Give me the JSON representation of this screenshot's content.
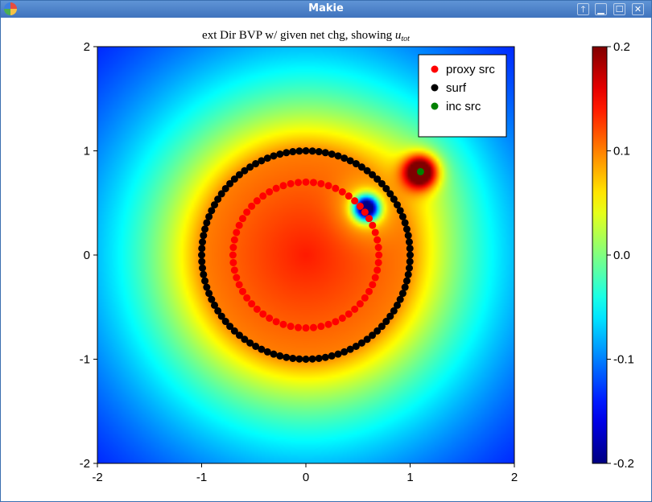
{
  "window": {
    "title": "Makie",
    "buttons": [
      {
        "name": "keep-above-button",
        "glyph": "🡑"
      },
      {
        "name": "minimize-button",
        "glyph": "▁"
      },
      {
        "name": "maximize-button",
        "glyph": "☐"
      },
      {
        "name": "close-button",
        "glyph": "✕"
      }
    ]
  },
  "chart_data": {
    "type": "heatmap",
    "title": "ext Dir BVP w/ given net chg, showing ",
    "title_math_main": "u",
    "title_math_sub": "tot",
    "xlim": [
      -2,
      2
    ],
    "ylim": [
      -2,
      2
    ],
    "xticks": [
      "-2",
      "-1",
      "0",
      "1",
      "2"
    ],
    "yticks": [
      "-2",
      "-1",
      "0",
      "1",
      "2"
    ],
    "xtick_values": [
      -2,
      -1,
      0,
      1,
      2
    ],
    "ytick_values": [
      -2,
      -1,
      0,
      1,
      2
    ],
    "colorbar": {
      "range": [
        -0.2,
        0.2
      ],
      "ticks": [
        "-0.2",
        "-0.1",
        "0.0",
        "0.1",
        "0.2"
      ],
      "tick_values": [
        -0.2,
        -0.1,
        0.0,
        0.1,
        0.2
      ],
      "colormap": "jet"
    },
    "field": {
      "description_note": "u_tot sampled on the square",
      "surface_radius": 1.0,
      "inner_value": 0.1,
      "inc_source": {
        "x": 1.1,
        "y": 0.8
      },
      "neg_source": {
        "x": 0.58,
        "y": 0.45
      }
    },
    "series": [
      {
        "name": "proxy src",
        "color": "#ff0000",
        "kind": "circle",
        "radius": 0.7,
        "count": 60
      },
      {
        "name": "surf",
        "color": "#000000",
        "kind": "circle",
        "radius": 1.0,
        "count": 100
      },
      {
        "name": "inc src",
        "color": "#008000",
        "kind": "point",
        "x": 1.1,
        "y": 0.8
      }
    ],
    "legend_placement": "top-right",
    "grid": false
  }
}
